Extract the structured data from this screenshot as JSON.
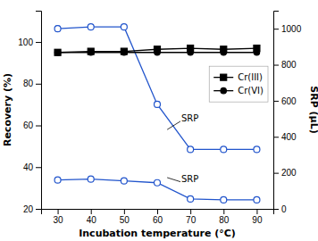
{
  "chart_data": {
    "type": "line",
    "xlabel": "Incubation temperature (°C)",
    "ylabel": "Recovery (%)",
    "y2label": "SRP (μL)",
    "x": [
      30,
      40,
      50,
      60,
      70,
      80,
      90
    ],
    "xlim": [
      25,
      95
    ],
    "xticks": [
      30,
      40,
      50,
      60,
      70,
      80,
      90
    ],
    "ylim": [
      20,
      115
    ],
    "yticks": [
      20,
      40,
      60,
      80,
      100
    ],
    "y2lim": [
      0,
      1100
    ],
    "y2ticks": [
      0,
      200,
      400,
      600,
      800,
      1000
    ],
    "legend": "upper right",
    "series": [
      {
        "color": "#2255cc",
        "marker": "open-circle",
        "axis": "y2",
        "values": [
          1000,
          1010,
          1010,
          580,
          330,
          330,
          330
        ],
        "errors": [
          15,
          10,
          10,
          15,
          10,
          10,
          10
        ]
      },
      {
        "color": "#2255cc",
        "marker": "open-circle",
        "axis": "y2",
        "values": [
          160,
          165,
          155,
          145,
          55,
          50,
          50
        ],
        "errors": [
          8,
          8,
          8,
          8,
          5,
          5,
          5
        ]
      },
      {
        "name": "Cr(III)",
        "color": "#000000",
        "marker": "square",
        "values": [
          95.0,
          95.5,
          95.5,
          96.5,
          97.0,
          96.5,
          97.0
        ],
        "errors": [
          0.5,
          0.5,
          0.5,
          0.5,
          0.5,
          0.5,
          0.5
        ]
      },
      {
        "name": "Cr(VI)",
        "color": "#000000",
        "marker": "circle",
        "values": [
          95.0,
          95.0,
          95.0,
          95.0,
          95.0,
          95.0,
          95.0
        ],
        "errors": [
          0.5,
          0.5,
          0.5,
          0.5,
          0.5,
          0.5,
          0.5
        ]
      }
    ],
    "annotations": [
      {
        "text": "SRP",
        "x": 67,
        "y": 62,
        "arrow_x": 63,
        "arrow_y": 58
      },
      {
        "text": "SRP",
        "x": 67,
        "y": 33,
        "arrow_x": 63,
        "arrow_y": 35
      }
    ]
  }
}
